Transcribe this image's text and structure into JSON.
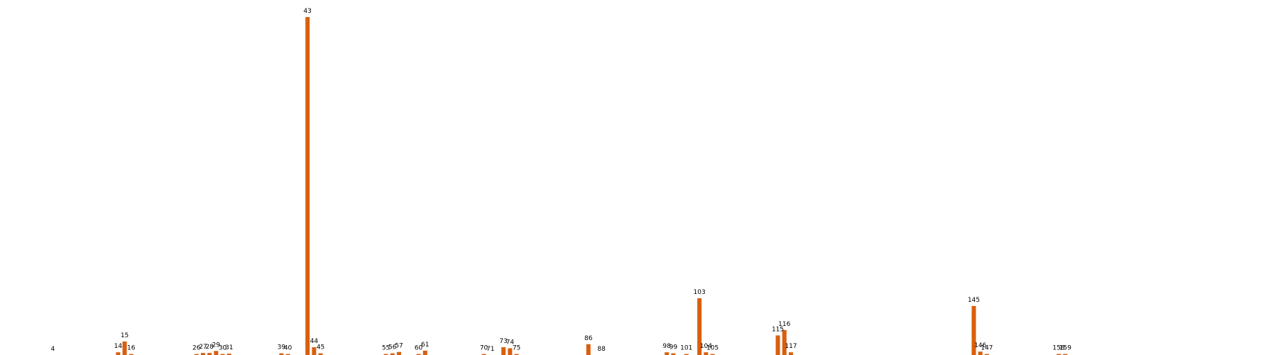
{
  "chart_data": {
    "type": "bar",
    "title": "",
    "xlabel": "",
    "ylabel": "",
    "grid": false,
    "legend": "none",
    "bar_color": "#d95f0e",
    "x_range": [
      0,
      170
    ],
    "ylim": [
      0,
      100
    ],
    "categories": [
      "4",
      "14",
      "15",
      "16",
      "26",
      "27",
      "28",
      "29",
      "30",
      "31",
      "39",
      "40",
      "43",
      "44",
      "45",
      "55",
      "56",
      "57",
      "60",
      "61",
      "70",
      "71",
      "73",
      "74",
      "75",
      "86",
      "88",
      "98",
      "99",
      "101",
      "103",
      "104",
      "105",
      "115",
      "116",
      "117",
      "145",
      "146",
      "147",
      "158",
      "159"
    ],
    "values": [
      0,
      0.8,
      4,
      0.3,
      0.3,
      0.6,
      0.6,
      1.2,
      0.3,
      0.4,
      0.5,
      0.3,
      100,
      2.3,
      0.5,
      0.3,
      0.5,
      0.9,
      0.3,
      1.3,
      0.3,
      0,
      2.3,
      2.0,
      0.3,
      3.2,
      0,
      0.8,
      0.5,
      0.3,
      16.8,
      0.8,
      0.3,
      5.8,
      7.4,
      0.8,
      14.5,
      1.0,
      0.3,
      0.3,
      0.3
    ]
  }
}
